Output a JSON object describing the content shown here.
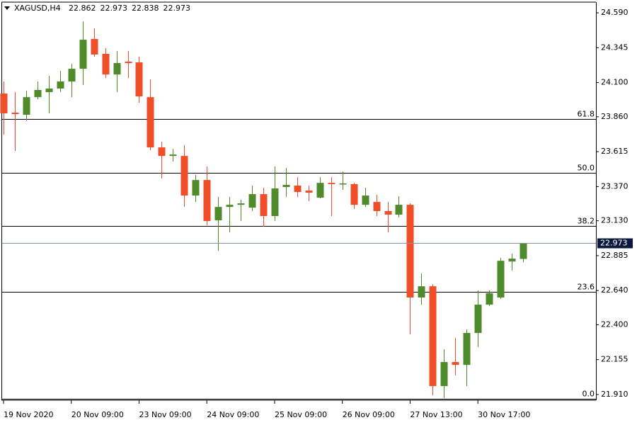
{
  "chart_data": {
    "type": "candlestick",
    "symbol": "XAGUSD,H4",
    "categories": [
      "19 Nov 2020",
      null,
      null,
      null,
      null,
      null,
      "20 Nov 09:00",
      null,
      null,
      null,
      null,
      null,
      "23 Nov 09:00",
      null,
      null,
      null,
      null,
      null,
      "24 Nov 09:00",
      null,
      null,
      null,
      null,
      null,
      "25 Nov 09:00",
      null,
      null,
      null,
      null,
      null,
      "26 Nov 09:00",
      null,
      null,
      null,
      null,
      null,
      "27 Nov 13:00",
      null,
      null,
      null,
      null,
      null,
      "30 Nov 17:00",
      null,
      null,
      null,
      null
    ],
    "open": [
      24.023,
      23.889,
      23.874,
      23.998,
      24.033,
      24.058,
      24.108,
      24.197,
      24.406,
      24.302,
      24.157,
      24.247,
      24.242,
      23.998,
      23.645,
      23.585,
      23.585,
      23.307,
      23.416,
      23.133,
      23.227,
      23.242,
      23.222,
      23.317,
      23.163,
      23.367,
      23.377,
      23.342,
      23.292,
      23.396,
      23.387,
      23.387,
      23.242,
      23.262,
      23.198,
      23.173,
      23.242,
      22.591,
      22.67,
      21.969,
      22.138,
      22.118,
      22.342,
      22.541,
      22.591,
      22.844,
      22.862
    ],
    "high": [
      24.108,
      24.033,
      24.043,
      24.108,
      24.147,
      24.182,
      24.232,
      24.53,
      24.481,
      24.341,
      24.321,
      24.321,
      24.282,
      24.123,
      23.685,
      23.635,
      23.66,
      23.451,
      23.511,
      23.297,
      23.297,
      23.277,
      23.377,
      23.362,
      23.511,
      23.501,
      23.436,
      23.377,
      23.436,
      23.436,
      23.476,
      23.396,
      23.362,
      23.312,
      23.262,
      23.302,
      23.252,
      22.76,
      22.685,
      22.228,
      22.307,
      22.367,
      22.641,
      22.641,
      22.869,
      22.899,
      22.973
    ],
    "low": [
      23.735,
      23.62,
      23.834,
      23.983,
      23.884,
      24.033,
      23.998,
      24.083,
      24.282,
      24.132,
      24.033,
      24.132,
      23.958,
      23.625,
      23.426,
      23.546,
      23.227,
      23.262,
      23.098,
      22.919,
      23.048,
      23.128,
      23.198,
      23.088,
      23.128,
      23.297,
      23.297,
      23.267,
      23.287,
      23.163,
      23.347,
      23.212,
      23.227,
      23.163,
      23.048,
      23.153,
      22.332,
      22.541,
      21.905,
      21.885,
      22.044,
      21.969,
      22.243,
      22.531,
      22.581,
      22.78,
      22.838
    ],
    "close": [
      23.884,
      23.879,
      23.998,
      24.048,
      24.058,
      24.108,
      24.197,
      24.401,
      24.297,
      24.157,
      24.237,
      24.237,
      24.003,
      23.645,
      23.585,
      23.595,
      23.307,
      23.416,
      23.128,
      23.227,
      23.242,
      23.252,
      23.317,
      23.163,
      23.357,
      23.382,
      23.332,
      23.327,
      23.396,
      23.387,
      23.392,
      23.242,
      23.307,
      23.198,
      23.173,
      23.242,
      22.591,
      22.67,
      21.969,
      22.138,
      22.118,
      22.342,
      22.541,
      22.621,
      22.849,
      22.864,
      22.973
    ],
    "up_color": "#4f8a2b",
    "down_color": "#f04e28",
    "ylim": [
      21.87,
      24.665
    ],
    "yticks": [
      {
        "value": 24.59,
        "label": "24.590"
      },
      24.345,
      {
        "value": 24.1,
        "label": "24.100"
      },
      {
        "value": 23.86,
        "label": "23.860"
      },
      23.615,
      {
        "value": 23.37,
        "label": "23.370"
      },
      {
        "value": 23.13,
        "label": "23.130"
      },
      22.885,
      {
        "value": 22.64,
        "label": "22.640"
      },
      {
        "value": 22.4,
        "label": "22.400"
      },
      22.155,
      {
        "value": 21.91,
        "label": "21.910"
      }
    ],
    "fib_levels": [
      {
        "label": "61.8",
        "value": 23.844
      },
      {
        "label": "50.0",
        "value": 23.466
      },
      {
        "label": "38.2",
        "value": 23.093
      },
      {
        "label": "23.6",
        "value": 22.631
      },
      {
        "label": "0.0",
        "value": 21.88
      }
    ],
    "fib_color": "#000000",
    "price_line_color": "#7f97a8",
    "price_label_color": "#0a1a3c"
  }
}
